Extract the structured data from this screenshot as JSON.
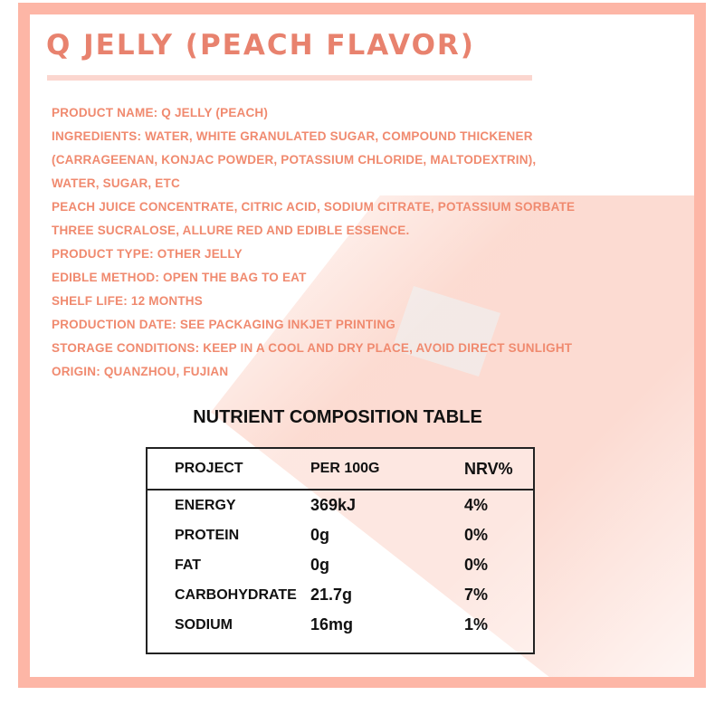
{
  "title": "Q JELLY (PEACH FLAVOR)",
  "info_lines": [
    "PRODUCT NAME: Q JELLY (PEACH)",
    "INGREDIENTS: WATER, WHITE GRANULATED SUGAR, COMPOUND THICKENER",
    "(CARRAGEENAN, KONJAC POWDER, POTASSIUM CHLORIDE, MALTODEXTRIN),",
    "WATER, SUGAR, ETC",
    "PEACH JUICE CONCENTRATE, CITRIC ACID, SODIUM CITRATE, POTASSIUM SORBATE",
    "THREE SUCRALOSE, ALLURE RED AND EDIBLE ESSENCE.",
    "PRODUCT TYPE: OTHER JELLY",
    "EDIBLE METHOD: OPEN THE BAG TO EAT",
    "SHELF LIFE: 12 MONTHS",
    "PRODUCTION DATE: SEE PACKAGING INKJET PRINTING",
    "STORAGE CONDITIONS: KEEP IN A COOL AND DRY PLACE, AVOID DIRECT SUNLIGHT",
    "ORIGIN: QUANZHOU, FUJIAN"
  ],
  "table": {
    "title": "NUTRIENT COMPOSITION TABLE",
    "headers": [
      "PROJECT",
      "PER 100G",
      "NRV%"
    ],
    "rows": [
      [
        "ENERGY",
        "369kJ",
        "4%"
      ],
      [
        "PROTEIN",
        "0g",
        "0%"
      ],
      [
        "FAT",
        "0g",
        "0%"
      ],
      [
        "CARBOHYDRATE",
        "21.7g",
        "7%"
      ],
      [
        "SODIUM",
        "16mg",
        "1%"
      ]
    ]
  },
  "colors": {
    "accent": "#e8826e",
    "text": "#f08a6f",
    "frame": "#fdb6a6"
  }
}
